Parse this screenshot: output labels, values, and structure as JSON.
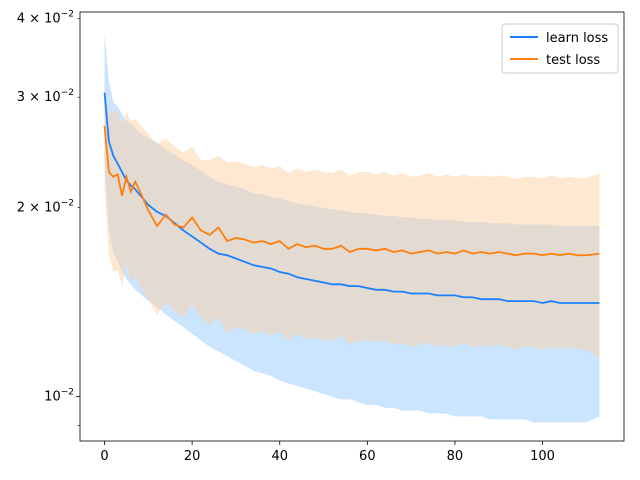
{
  "chart_data": {
    "type": "line",
    "title": "",
    "xlabel": "",
    "ylabel": "",
    "xlim": [
      -5.6,
      118.6
    ],
    "ylim": [
      0.0085,
      0.041
    ],
    "yscale": "log",
    "grid": false,
    "legend_position": "top-right",
    "x_ticks": [
      0,
      20,
      40,
      60,
      80,
      100
    ],
    "x_tick_labels": [
      "0",
      "20",
      "40",
      "60",
      "80",
      "100"
    ],
    "y_major_ticks": [
      0.01
    ],
    "y_major_tick_labels": [
      "10^-2"
    ],
    "y_minor_ticks": [
      0.009,
      0.02,
      0.03,
      0.04
    ],
    "y_minor_tick_labels": [
      "",
      "2×10^-2",
      "3×10^-2",
      "4×10^-2"
    ],
    "series": [
      {
        "name": "learn loss",
        "color": "#1a80ff",
        "band_color": "#99ccff",
        "x": [
          0,
          1,
          2,
          3,
          4,
          5,
          6,
          7,
          8,
          10,
          12,
          14,
          16,
          18,
          20,
          22,
          24,
          26,
          28,
          30,
          32,
          34,
          36,
          38,
          40,
          42,
          44,
          46,
          48,
          50,
          52,
          54,
          56,
          58,
          60,
          62,
          64,
          66,
          68,
          70,
          72,
          74,
          76,
          78,
          80,
          82,
          84,
          86,
          88,
          90,
          92,
          94,
          96,
          98,
          100,
          102,
          104,
          106,
          108,
          110,
          113
        ],
        "values": [
          0.0305,
          0.0255,
          0.0242,
          0.0235,
          0.0228,
          0.0221,
          0.0217,
          0.0214,
          0.021,
          0.0202,
          0.0197,
          0.0194,
          0.0189,
          0.0184,
          0.018,
          0.0176,
          0.0172,
          0.0169,
          0.0168,
          0.0166,
          0.0164,
          0.0162,
          0.0161,
          0.016,
          0.0158,
          0.0157,
          0.0155,
          0.0154,
          0.0153,
          0.0152,
          0.0151,
          0.0151,
          0.015,
          0.015,
          0.0149,
          0.0148,
          0.0148,
          0.0147,
          0.0147,
          0.0146,
          0.0146,
          0.0146,
          0.0145,
          0.0145,
          0.0145,
          0.0144,
          0.0144,
          0.0143,
          0.0143,
          0.0143,
          0.0142,
          0.0142,
          0.0142,
          0.0142,
          0.0141,
          0.0142,
          0.0141,
          0.0141,
          0.0141,
          0.0141,
          0.0141
        ],
        "upper": [
          0.0378,
          0.0318,
          0.0295,
          0.029,
          0.0282,
          0.0275,
          0.0272,
          0.0268,
          0.0263,
          0.0258,
          0.0254,
          0.0248,
          0.0243,
          0.0238,
          0.0234,
          0.0229,
          0.0224,
          0.022,
          0.0218,
          0.0216,
          0.0214,
          0.0211,
          0.021,
          0.0208,
          0.0207,
          0.0205,
          0.0203,
          0.0202,
          0.0201,
          0.02,
          0.0199,
          0.0198,
          0.0197,
          0.0196,
          0.0196,
          0.0195,
          0.0194,
          0.0194,
          0.0193,
          0.0193,
          0.0192,
          0.0192,
          0.0191,
          0.0191,
          0.0191,
          0.019,
          0.019,
          0.019,
          0.0189,
          0.0189,
          0.0189,
          0.0188,
          0.0188,
          0.0188,
          0.0188,
          0.0188,
          0.0187,
          0.0187,
          0.0187,
          0.0187,
          0.0187
        ],
        "lower": [
          0.0232,
          0.0185,
          0.017,
          0.0164,
          0.0158,
          0.0154,
          0.0151,
          0.0148,
          0.0146,
          0.0142,
          0.0139,
          0.0135,
          0.0132,
          0.0129,
          0.0126,
          0.0123,
          0.012,
          0.0118,
          0.0116,
          0.0114,
          0.0112,
          0.011,
          0.0109,
          0.0108,
          0.0106,
          0.0105,
          0.0104,
          0.0103,
          0.0102,
          0.0101,
          0.01,
          0.0099,
          0.0099,
          0.0098,
          0.0097,
          0.0097,
          0.0096,
          0.0096,
          0.0095,
          0.0095,
          0.0095,
          0.0094,
          0.0094,
          0.0094,
          0.0093,
          0.0093,
          0.0093,
          0.0093,
          0.0092,
          0.0092,
          0.0092,
          0.0092,
          0.0092,
          0.0091,
          0.0091,
          0.0091,
          0.0091,
          0.0091,
          0.0091,
          0.0091,
          0.0093
        ]
      },
      {
        "name": "test loss",
        "color": "#ff7f0e",
        "band_color": "#ffcc99",
        "x": [
          0,
          1,
          2,
          3,
          4,
          5,
          6,
          7,
          8,
          10,
          12,
          14,
          16,
          18,
          20,
          22,
          24,
          26,
          28,
          30,
          32,
          34,
          36,
          38,
          40,
          42,
          44,
          46,
          48,
          50,
          52,
          54,
          56,
          58,
          60,
          62,
          64,
          66,
          68,
          70,
          72,
          74,
          76,
          78,
          80,
          82,
          84,
          86,
          88,
          90,
          92,
          94,
          96,
          98,
          100,
          102,
          104,
          106,
          108,
          110,
          113
        ],
        "values": [
          0.027,
          0.0228,
          0.0224,
          0.0226,
          0.0209,
          0.0224,
          0.0212,
          0.022,
          0.0213,
          0.0198,
          0.0187,
          0.0195,
          0.0188,
          0.0186,
          0.0193,
          0.0184,
          0.0181,
          0.0186,
          0.0177,
          0.0179,
          0.0178,
          0.0176,
          0.0177,
          0.0175,
          0.0177,
          0.0172,
          0.0175,
          0.0173,
          0.0174,
          0.0172,
          0.0172,
          0.0174,
          0.017,
          0.0172,
          0.0172,
          0.0171,
          0.0172,
          0.017,
          0.0171,
          0.0169,
          0.017,
          0.0171,
          0.0169,
          0.017,
          0.0169,
          0.0171,
          0.0169,
          0.017,
          0.0169,
          0.017,
          0.0169,
          0.0168,
          0.0169,
          0.0169,
          0.0168,
          0.0169,
          0.0168,
          0.0169,
          0.0168,
          0.0168,
          0.0169
        ],
        "upper": [
          0.0318,
          0.0282,
          0.0285,
          0.0284,
          0.0272,
          0.0284,
          0.0275,
          0.0277,
          0.0272,
          0.0262,
          0.0252,
          0.0258,
          0.025,
          0.0245,
          0.025,
          0.0238,
          0.0238,
          0.0242,
          0.0236,
          0.0237,
          0.0235,
          0.0232,
          0.0234,
          0.0231,
          0.0233,
          0.0227,
          0.0231,
          0.0228,
          0.023,
          0.0228,
          0.0227,
          0.023,
          0.0225,
          0.0228,
          0.0228,
          0.0226,
          0.0228,
          0.0225,
          0.0227,
          0.0224,
          0.0225,
          0.0227,
          0.0224,
          0.0226,
          0.0224,
          0.0226,
          0.0224,
          0.0225,
          0.0224,
          0.0225,
          0.0224,
          0.0222,
          0.0224,
          0.0224,
          0.0223,
          0.0225,
          0.0223,
          0.0224,
          0.0223,
          0.0223,
          0.0227
        ],
        "lower": [
          0.0214,
          0.0168,
          0.0158,
          0.0159,
          0.015,
          0.0163,
          0.0152,
          0.0156,
          0.015,
          0.0143,
          0.0135,
          0.0141,
          0.0137,
          0.0134,
          0.014,
          0.0134,
          0.013,
          0.0134,
          0.0126,
          0.0129,
          0.0128,
          0.0126,
          0.0127,
          0.0125,
          0.0127,
          0.0123,
          0.0126,
          0.0124,
          0.0124,
          0.0123,
          0.0123,
          0.0125,
          0.0121,
          0.0123,
          0.0123,
          0.0122,
          0.0123,
          0.0121,
          0.0122,
          0.012,
          0.0121,
          0.0122,
          0.012,
          0.0121,
          0.012,
          0.0122,
          0.012,
          0.0121,
          0.012,
          0.0121,
          0.012,
          0.0119,
          0.012,
          0.012,
          0.0119,
          0.012,
          0.0119,
          0.012,
          0.0119,
          0.0119,
          0.0115
        ]
      }
    ]
  }
}
